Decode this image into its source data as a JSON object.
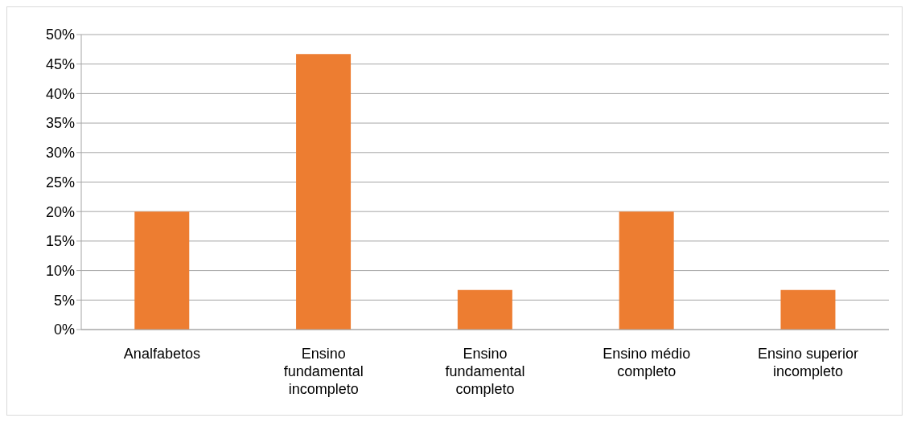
{
  "chart_data": {
    "type": "bar",
    "categories": [
      "Analfabetos",
      "Ensino fundamental incompleto",
      "Ensino fundamental completo",
      "Ensino médio completo",
      "Ensino superior incompleto"
    ],
    "values": [
      20,
      46.7,
      6.7,
      20,
      6.7
    ],
    "color": "#ed7d31",
    "ylim": [
      0,
      50
    ],
    "yticks": [
      {
        "value": 0,
        "label": "0%"
      },
      {
        "value": 5,
        "label": "5%"
      },
      {
        "value": 10,
        "label": "10%"
      },
      {
        "value": 15,
        "label": "15%"
      },
      {
        "value": 20,
        "label": "20%"
      },
      {
        "value": 25,
        "label": "25%"
      },
      {
        "value": 30,
        "label": "30%"
      },
      {
        "value": 35,
        "label": "35%"
      },
      {
        "value": 40,
        "label": "40%"
      },
      {
        "value": 45,
        "label": "45%"
      },
      {
        "value": 50,
        "label": "50%"
      }
    ],
    "grid": "y",
    "legend": false
  }
}
